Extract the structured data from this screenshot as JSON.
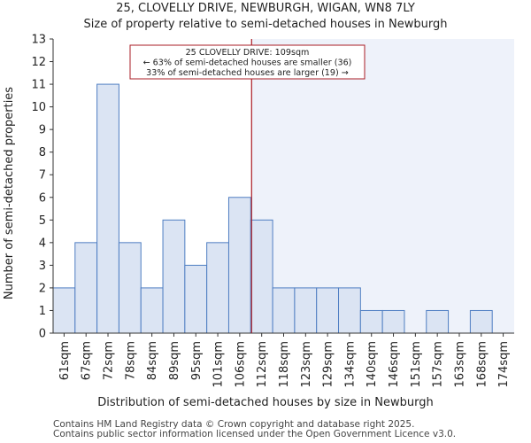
{
  "chart_data": {
    "type": "bar",
    "title": "25, CLOVELLY DRIVE, NEWBURGH, WIGAN, WN8 7LY",
    "subtitle": "Size of property relative to semi-detached houses in Newburgh",
    "xlabel": "Distribution of semi-detached houses by size in Newburgh",
    "ylabel": "Number of semi-detached properties",
    "categories": [
      "61sqm",
      "67sqm",
      "72sqm",
      "78sqm",
      "84sqm",
      "89sqm",
      "95sqm",
      "101sqm",
      "106sqm",
      "112sqm",
      "118sqm",
      "123sqm",
      "129sqm",
      "134sqm",
      "140sqm",
      "146sqm",
      "151sqm",
      "157sqm",
      "163sqm",
      "168sqm",
      "174sqm"
    ],
    "values": [
      2,
      4,
      11,
      4,
      2,
      5,
      3,
      4,
      6,
      5,
      2,
      2,
      2,
      2,
      1,
      1,
      0,
      1,
      0,
      1,
      0
    ],
    "ylim": [
      0,
      13
    ],
    "yticks": [
      0,
      1,
      2,
      3,
      4,
      5,
      6,
      7,
      8,
      9,
      10,
      11,
      12,
      13
    ],
    "grid": false,
    "marker": {
      "value_sqm": 109,
      "position_between": [
        "106sqm",
        "112sqm"
      ],
      "color": "#aa1c24"
    },
    "annotation": {
      "lines": [
        "25 CLOVELLY DRIVE: 109sqm",
        "← 63% of semi-detached houses are smaller (36)",
        "33% of semi-detached houses are larger (19) →"
      ]
    },
    "colors": {
      "bar_fill": "#dbe4f3",
      "bar_edge": "#4f7ec2",
      "highlight_region": "#eef2fa",
      "axis": "#333333"
    }
  },
  "footer": {
    "line1": "Contains HM Land Registry data © Crown copyright and database right 2025.",
    "line2": "Contains public sector information licensed under the Open Government Licence v3.0."
  }
}
